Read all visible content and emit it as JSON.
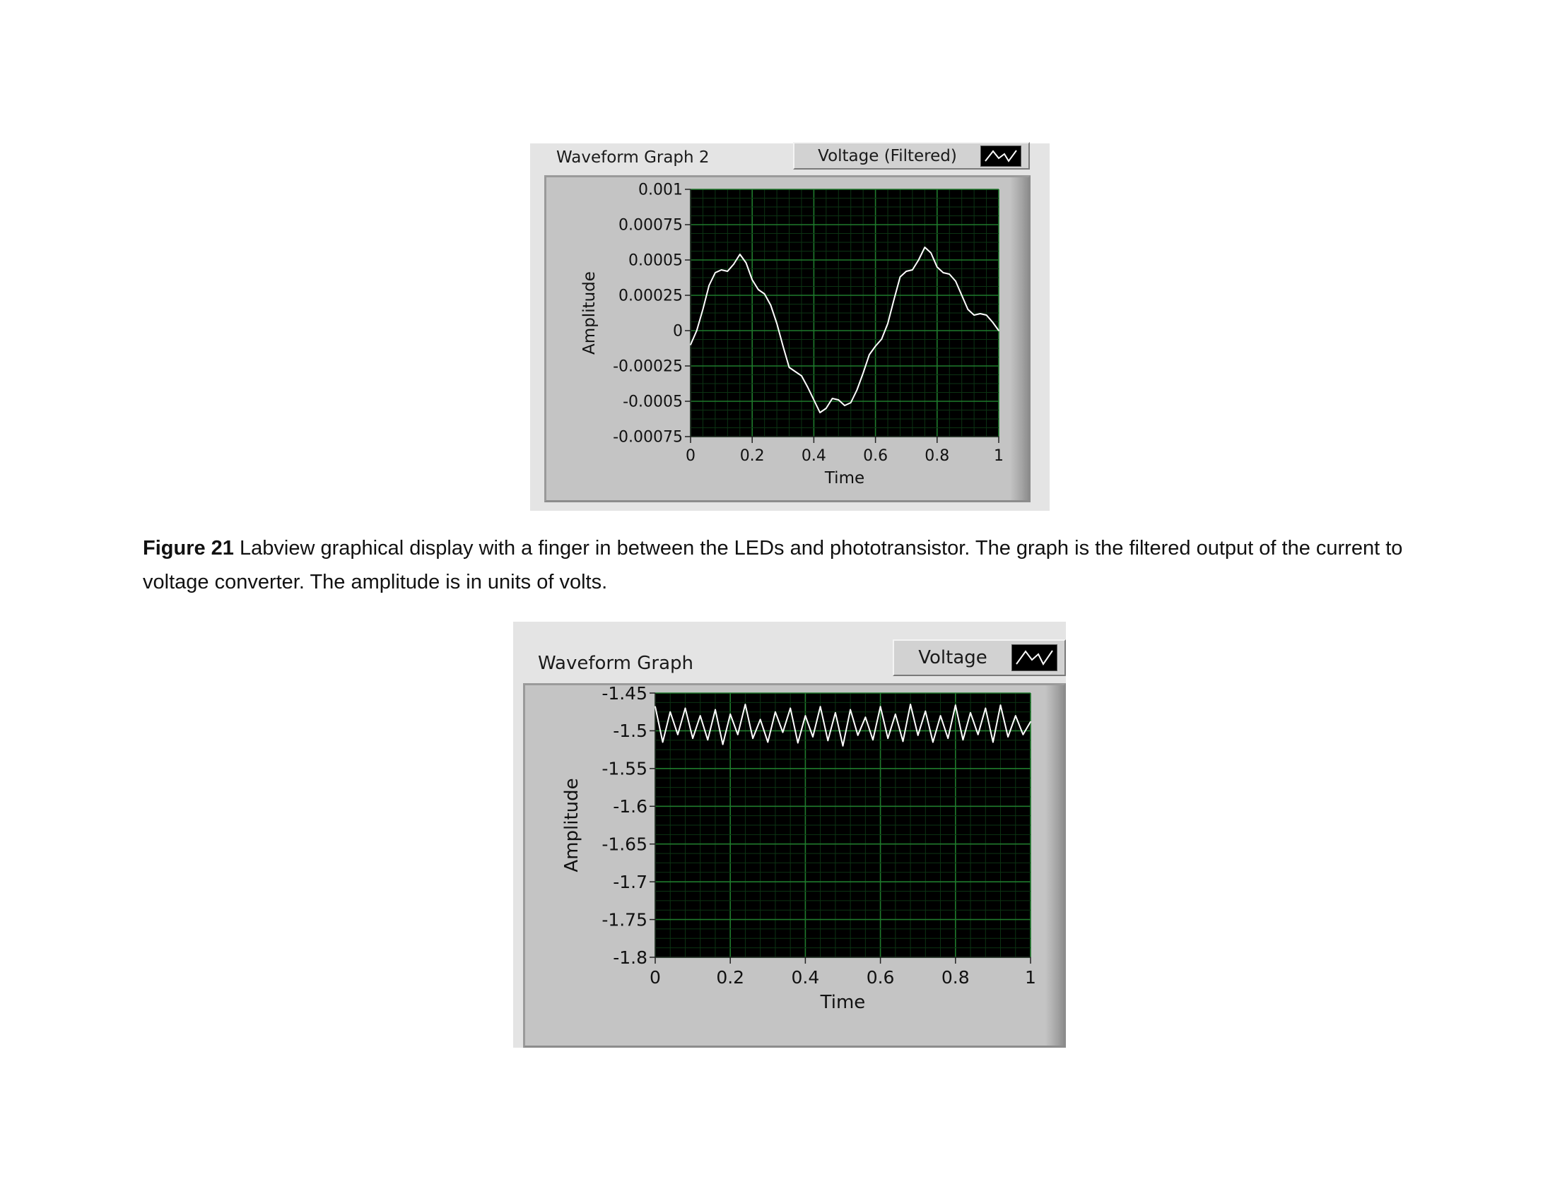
{
  "caption": {
    "label": "Figure 21",
    "text": " Labview graphical display with a finger in between the LEDs and phototransistor. The graph is the filtered output of the current to voltage converter. The amplitude is in units of volts."
  },
  "colors": {
    "plot_bg": "#000000",
    "grid_major": "#1f7a2c",
    "grid_minor": "#0c3313",
    "trace": "#ffffff",
    "panel": "#e4e4e4",
    "frame": "#c4c4c4"
  },
  "chart_data": [
    {
      "id": "graph2",
      "type": "line",
      "panel_title": "Waveform Graph 2",
      "legend": "Voltage (Filtered)",
      "legend_icon": "waveform-line-icon",
      "xlabel": "Time",
      "ylabel": "Amplitude",
      "xlim": [
        0,
        1
      ],
      "ylim": [
        -0.00075,
        0.001
      ],
      "xticks": [
        "0",
        "0.2",
        "0.4",
        "0.6",
        "0.8",
        "1"
      ],
      "yticks": [
        "0.001",
        "0.00075",
        "0.0005",
        "0.00025",
        "0",
        "-0.00025",
        "-0.0005",
        "-0.00075"
      ],
      "grid": true,
      "series": [
        {
          "x": [
            0,
            0.02,
            0.04,
            0.06,
            0.08,
            0.1,
            0.12,
            0.14,
            0.16,
            0.18,
            0.2,
            0.22,
            0.24,
            0.26,
            0.28,
            0.3,
            0.32,
            0.34,
            0.36,
            0.38,
            0.4,
            0.42,
            0.44,
            0.46,
            0.48,
            0.5,
            0.52,
            0.54,
            0.56,
            0.58,
            0.6,
            0.62,
            0.64,
            0.66,
            0.68,
            0.7,
            0.72,
            0.74,
            0.76,
            0.78,
            0.8,
            0.82,
            0.84,
            0.86,
            0.88,
            0.9,
            0.92,
            0.94,
            0.96,
            0.98,
            1.0
          ],
          "y": [
            -0.0001,
            0.0,
            0.00015,
            0.00032,
            0.00041,
            0.00043,
            0.00042,
            0.00047,
            0.00054,
            0.00048,
            0.00036,
            0.00029,
            0.00026,
            0.00018,
            5e-05,
            -0.00011,
            -0.00026,
            -0.00029,
            -0.00032,
            -0.0004,
            -0.00049,
            -0.00058,
            -0.00055,
            -0.00048,
            -0.00049,
            -0.00053,
            -0.00051,
            -0.00042,
            -0.0003,
            -0.00017,
            -0.00011,
            -6e-05,
            5e-05,
            0.00022,
            0.00038,
            0.00042,
            0.00043,
            0.0005,
            0.00059,
            0.00055,
            0.00045,
            0.00041,
            0.0004,
            0.00035,
            0.00025,
            0.00015,
            0.00011,
            0.00012,
            0.00011,
            6e-05,
            0.0
          ]
        }
      ]
    },
    {
      "id": "graph1",
      "type": "line",
      "panel_title": "Waveform Graph",
      "legend": "Voltage",
      "legend_icon": "waveform-line-icon",
      "xlabel": "Time",
      "ylabel": "Amplitude",
      "xlim": [
        0,
        1
      ],
      "ylim": [
        -1.8,
        -1.45
      ],
      "xticks": [
        "0",
        "0.2",
        "0.4",
        "0.6",
        "0.8",
        "1"
      ],
      "yticks": [
        "-1.45",
        "-1.5",
        "-1.55",
        "-1.6",
        "-1.65",
        "-1.7",
        "-1.75",
        "-1.8"
      ],
      "grid": true,
      "series": [
        {
          "x": [
            0,
            0.02,
            0.04,
            0.06,
            0.08,
            0.1,
            0.12,
            0.14,
            0.16,
            0.18,
            0.2,
            0.22,
            0.24,
            0.26,
            0.28,
            0.3,
            0.32,
            0.34,
            0.36,
            0.38,
            0.4,
            0.42,
            0.44,
            0.46,
            0.48,
            0.5,
            0.52,
            0.54,
            0.56,
            0.58,
            0.6,
            0.62,
            0.64,
            0.66,
            0.68,
            0.7,
            0.72,
            0.74,
            0.76,
            0.78,
            0.8,
            0.82,
            0.84,
            0.86,
            0.88,
            0.9,
            0.92,
            0.94,
            0.96,
            0.98,
            1.0
          ],
          "y": [
            -1.468,
            -1.515,
            -1.475,
            -1.505,
            -1.47,
            -1.51,
            -1.48,
            -1.512,
            -1.472,
            -1.518,
            -1.478,
            -1.505,
            -1.465,
            -1.51,
            -1.485,
            -1.515,
            -1.475,
            -1.502,
            -1.47,
            -1.516,
            -1.48,
            -1.508,
            -1.468,
            -1.513,
            -1.476,
            -1.52,
            -1.472,
            -1.506,
            -1.482,
            -1.512,
            -1.468,
            -1.51,
            -1.478,
            -1.514,
            -1.465,
            -1.506,
            -1.474,
            -1.515,
            -1.48,
            -1.51,
            -1.466,
            -1.512,
            -1.476,
            -1.505,
            -1.47,
            -1.515,
            -1.466,
            -1.508,
            -1.48,
            -1.505,
            -1.488
          ]
        }
      ]
    }
  ]
}
